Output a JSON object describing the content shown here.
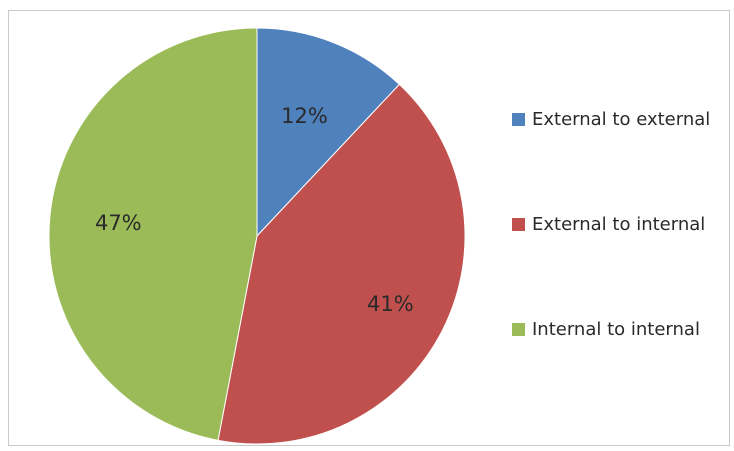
{
  "chart_data": {
    "type": "pie",
    "title": "",
    "slices": [
      {
        "label": "External to external",
        "value": 12,
        "display": "12%",
        "color": "#4f81bd"
      },
      {
        "label": "External to internal",
        "value": 41,
        "display": "41%",
        "color": "#c0504d"
      },
      {
        "label": "Internal to internal",
        "value": 47,
        "display": "47%",
        "color": "#9bbb59"
      }
    ],
    "start_angle": "12 o'clock",
    "direction": "clockwise",
    "legend_position": "right"
  }
}
